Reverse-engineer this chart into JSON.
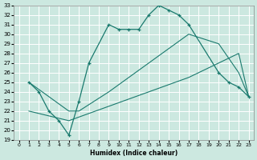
{
  "xlabel": "Humidex (Indice chaleur)",
  "ylabel": "",
  "bg_color": "#cce8e0",
  "line_color": "#1a7a6e",
  "grid_color": "#b0d8d0",
  "xlim": [
    -0.5,
    23.5
  ],
  "ylim": [
    19,
    33
  ],
  "xticks": [
    0,
    1,
    2,
    3,
    4,
    5,
    6,
    7,
    8,
    9,
    10,
    11,
    12,
    13,
    14,
    15,
    16,
    17,
    18,
    19,
    20,
    21,
    22,
    23
  ],
  "yticks": [
    19,
    20,
    21,
    22,
    23,
    24,
    25,
    26,
    27,
    28,
    29,
    30,
    31,
    32,
    33
  ],
  "line1_x": [
    1,
    2,
    3,
    4,
    5,
    6,
    7,
    9,
    10,
    11,
    12,
    13,
    14,
    15,
    16,
    17,
    20,
    21,
    22,
    23
  ],
  "line1_y": [
    25,
    24,
    22,
    21,
    19.5,
    23,
    27,
    31,
    30.5,
    30.5,
    30.5,
    32,
    33,
    32.5,
    32,
    31,
    26,
    25,
    24.5,
    23.5
  ],
  "line2_x": [
    1,
    5,
    6,
    9,
    13,
    17,
    20,
    22,
    23
  ],
  "line2_y": [
    25,
    22,
    22,
    24,
    27,
    30,
    29,
    26,
    23.5
  ],
  "line3_x": [
    1,
    5,
    9,
    13,
    17,
    20,
    22,
    23
  ],
  "line3_y": [
    22,
    21,
    22.5,
    24,
    25.5,
    27,
    28,
    23.5
  ]
}
